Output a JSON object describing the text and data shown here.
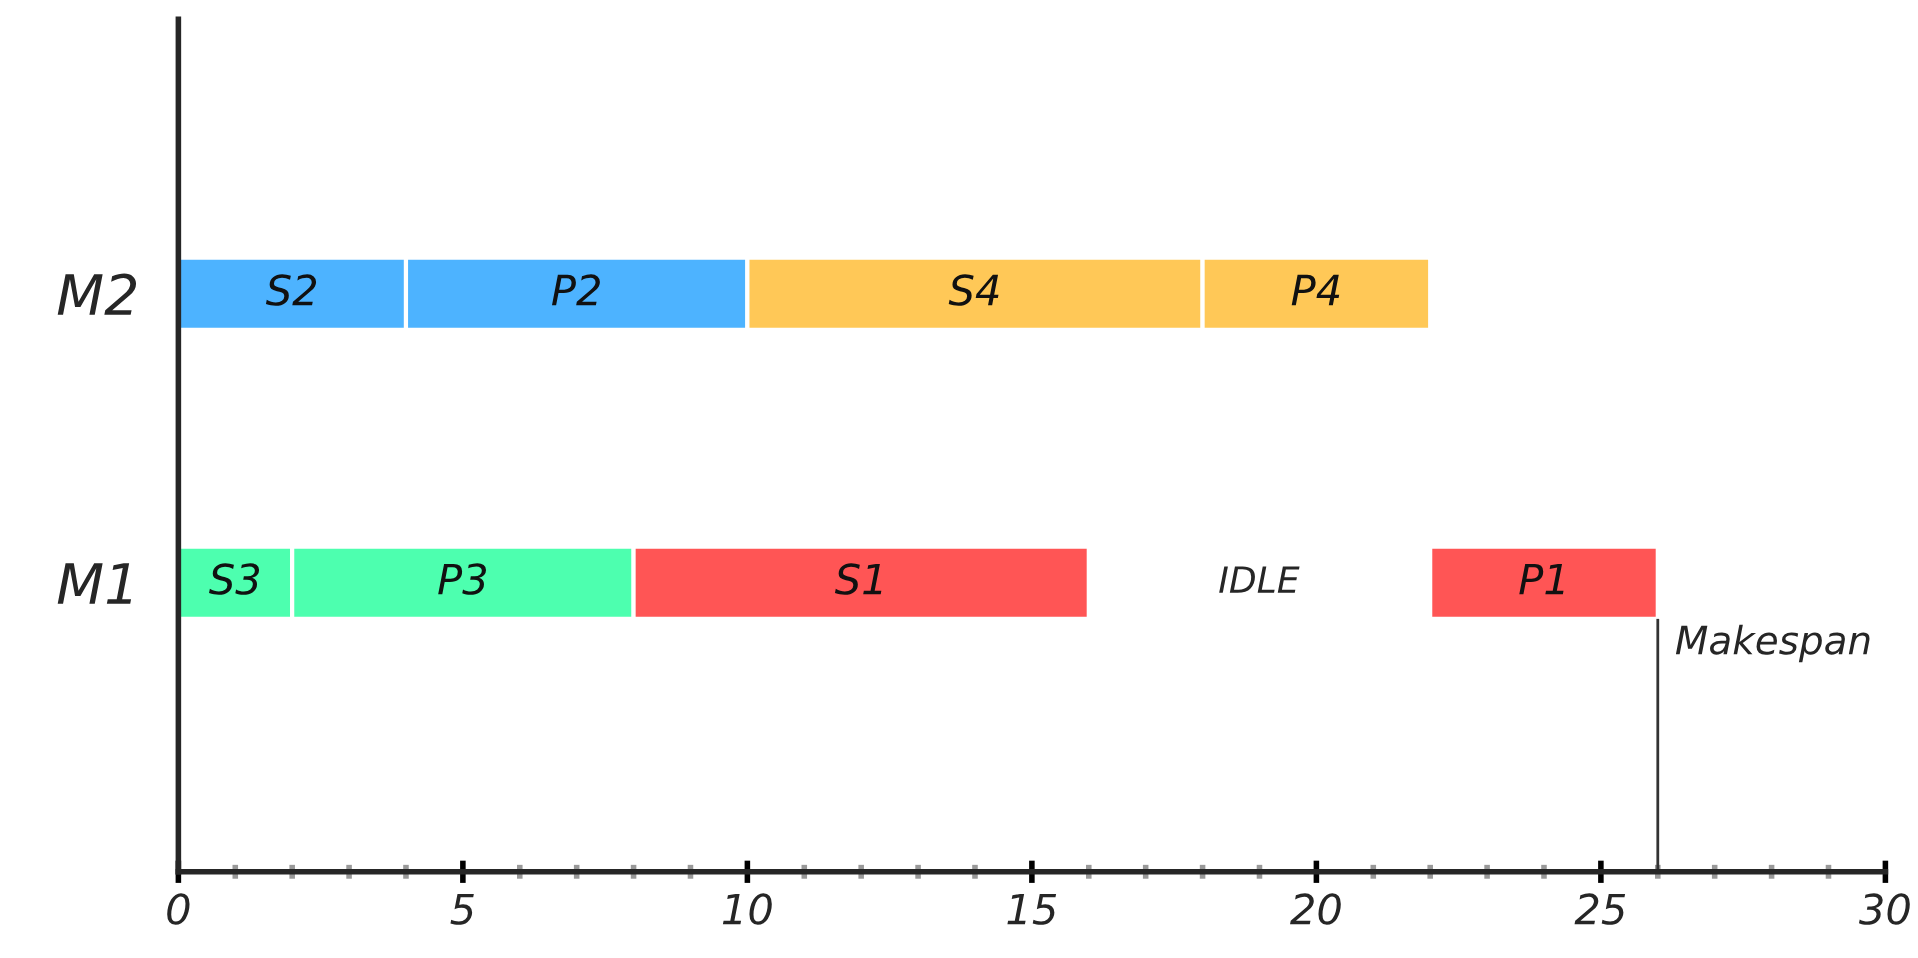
{
  "chart_data": {
    "type": "bar",
    "orientation": "horizontal",
    "categories": [
      "M2",
      "M1"
    ],
    "series": [
      {
        "name": "S2",
        "color": "#4db3ff",
        "values": [
          4,
          null
        ],
        "base": [
          0,
          null
        ]
      },
      {
        "name": "P2",
        "color": "#4db3ff",
        "values": [
          6,
          null
        ],
        "base": [
          4,
          null
        ]
      },
      {
        "name": "S4",
        "color": "#ffc857",
        "values": [
          8,
          null
        ],
        "base": [
          10,
          null
        ]
      },
      {
        "name": "P4",
        "color": "#ffc857",
        "values": [
          4,
          null
        ],
        "base": [
          18,
          null
        ]
      },
      {
        "name": "S3",
        "color": "#4dffaf",
        "values": [
          null,
          2
        ],
        "base": [
          null,
          0
        ]
      },
      {
        "name": "P3",
        "color": "#4dffaf",
        "values": [
          null,
          6
        ],
        "base": [
          null,
          2
        ]
      },
      {
        "name": "S1",
        "color": "#ff5555",
        "values": [
          null,
          8
        ],
        "base": [
          null,
          8
        ]
      },
      {
        "name": "P1",
        "color": "#ff5555",
        "values": [
          null,
          4
        ],
        "base": [
          null,
          22
        ]
      }
    ],
    "xlim": [
      0,
      30
    ],
    "xticks": [
      0,
      {
        "value": 1,
        "label": null
      },
      {
        "value": 2,
        "label": null
      },
      {
        "value": 3,
        "label": null
      },
      {
        "value": 4,
        "label": null
      },
      5,
      {
        "value": 6,
        "label": null
      },
      {
        "value": 7,
        "label": null
      },
      {
        "value": 8,
        "label": null
      },
      {
        "value": 9,
        "label": null
      },
      10,
      {
        "value": 11,
        "label": null
      },
      {
        "value": 12,
        "label": null
      },
      {
        "value": 13,
        "label": null
      },
      {
        "value": 14,
        "label": null
      },
      15,
      {
        "value": 16,
        "label": null
      },
      {
        "value": 17,
        "label": null
      },
      {
        "value": 18,
        "label": null
      },
      {
        "value": 19,
        "label": null
      },
      20,
      {
        "value": 21,
        "label": null
      },
      {
        "value": 22,
        "label": null
      },
      {
        "value": 23,
        "label": null
      },
      {
        "value": 24,
        "label": null
      },
      25,
      {
        "value": 26,
        "label": null
      },
      {
        "value": 27,
        "label": null
      },
      {
        "value": 28,
        "label": null
      },
      {
        "value": 29,
        "label": null
      },
      30
    ],
    "annotations": [
      "IDLE"
    ],
    "ref_lines": [
      {
        "axis": "x",
        "value": 26,
        "label": "Makespan",
        "color": "#333333"
      }
    ],
    "grid": false,
    "legend": false
  }
}
